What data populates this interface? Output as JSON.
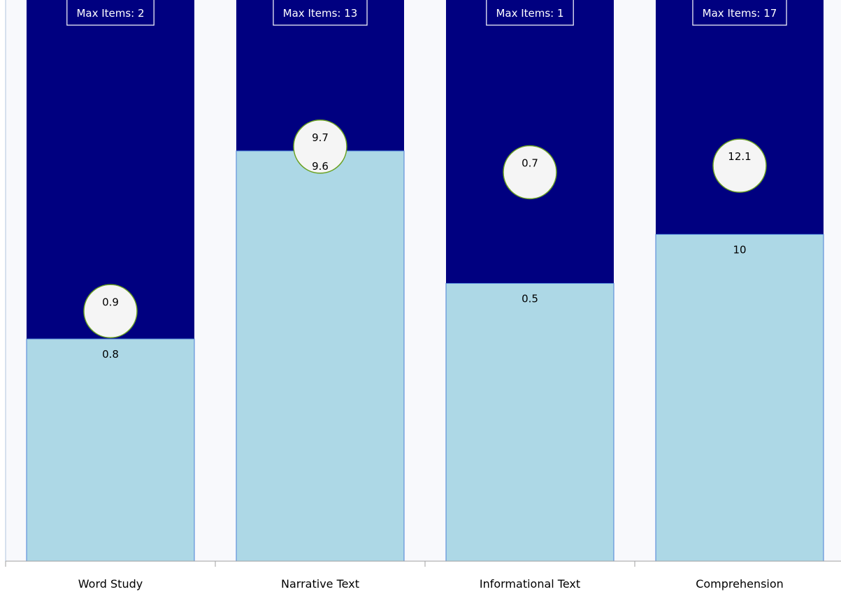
{
  "chart_data": {
    "type": "bar",
    "categories": [
      "Word Study",
      "Narrative Text",
      "Informational Text",
      "Comprehension"
    ],
    "series": [
      {
        "values": [
          0.8,
          9.6,
          0.5,
          10
        ]
      },
      {
        "values": [
          0.9,
          9.7,
          0.7,
          12.1
        ]
      }
    ],
    "max_items_labels": [
      "Max Items: 2",
      "Max Items: 13",
      "Max Items: 1",
      "Max Items: 17"
    ],
    "max_items": [
      2,
      13,
      1,
      17
    ],
    "value_labels": [
      "0.8",
      "9.6",
      "0.5",
      "10"
    ],
    "marker_labels": [
      "0.9",
      "9.7",
      "0.7",
      "12.1"
    ],
    "colors": {
      "max_bar": "#000080",
      "value_bar": "#add8e6",
      "marker_fill": "#f5f5f5",
      "marker_stroke": "#6aa121",
      "plot_bg": "#f8f9fc",
      "axis": "#b0c4de"
    },
    "grid": false,
    "legend": "none"
  }
}
